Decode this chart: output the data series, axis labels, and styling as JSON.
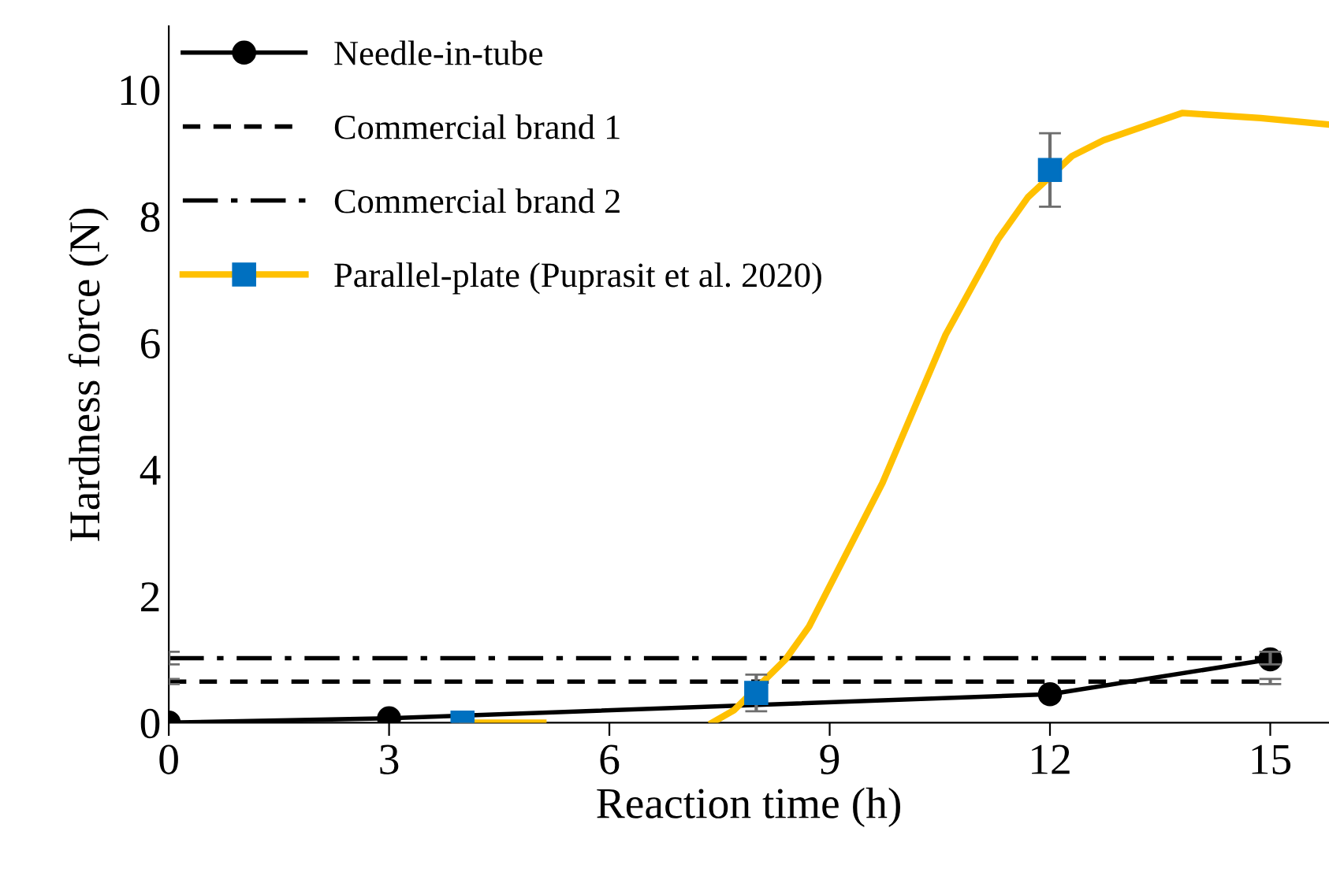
{
  "chart_data": {
    "type": "line",
    "xlabel": "Reaction time (h)",
    "ylabel": "Hardness force (N)",
    "xlim": [
      0,
      15.8
    ],
    "xticks": [
      0,
      3,
      6,
      9,
      12,
      15
    ],
    "ylim": [
      0,
      11
    ],
    "yticks": [
      0,
      2,
      4,
      6,
      8,
      10
    ],
    "grid": false,
    "legend": "top left",
    "series": [
      {
        "name": "Needle-in-tube",
        "color": "#000000",
        "x": [
          0,
          3,
          12,
          15
        ],
        "values": [
          0,
          0.07,
          0.45,
          1.0
        ],
        "marker": "circle",
        "line_style": "solid"
      },
      {
        "name": "Commercial brand 1",
        "color": "#000000",
        "x": [
          0,
          15
        ],
        "values": [
          0.65,
          0.65
        ],
        "errors": [
          0.04,
          0.04
        ],
        "marker": "none",
        "line_style": "dashed"
      },
      {
        "name": "Commercial brand 2",
        "color": "#000000",
        "x": [
          0,
          15
        ],
        "values": [
          1.02,
          1.02
        ],
        "errors": [
          0.1,
          0.1
        ],
        "marker": "none",
        "line_style": "dashdot"
      },
      {
        "name": "Parallel-plate (Puprasit et al. 2020)",
        "color": "#ffc000",
        "x": [
          4,
          5.1,
          6,
          7.4,
          7.7,
          8.4,
          8.72,
          9.72,
          10.58,
          11.29,
          11.7,
          12.3,
          12.73,
          13.8,
          14.87,
          15.78
        ],
        "values": [
          0,
          0,
          null,
          0,
          0.2,
          1.0,
          1.52,
          3.79,
          6.13,
          7.63,
          8.3,
          8.95,
          9.2,
          9.63,
          9.55,
          9.45
        ],
        "marker": "none",
        "line_style": "solid"
      },
      {
        "type": "scatter",
        "color": "#0070c0",
        "x": [
          4,
          8,
          12
        ],
        "values": [
          0,
          0.47,
          8.73
        ],
        "errors": [
          0,
          0.29,
          0.58
        ],
        "marker": "square"
      }
    ]
  }
}
